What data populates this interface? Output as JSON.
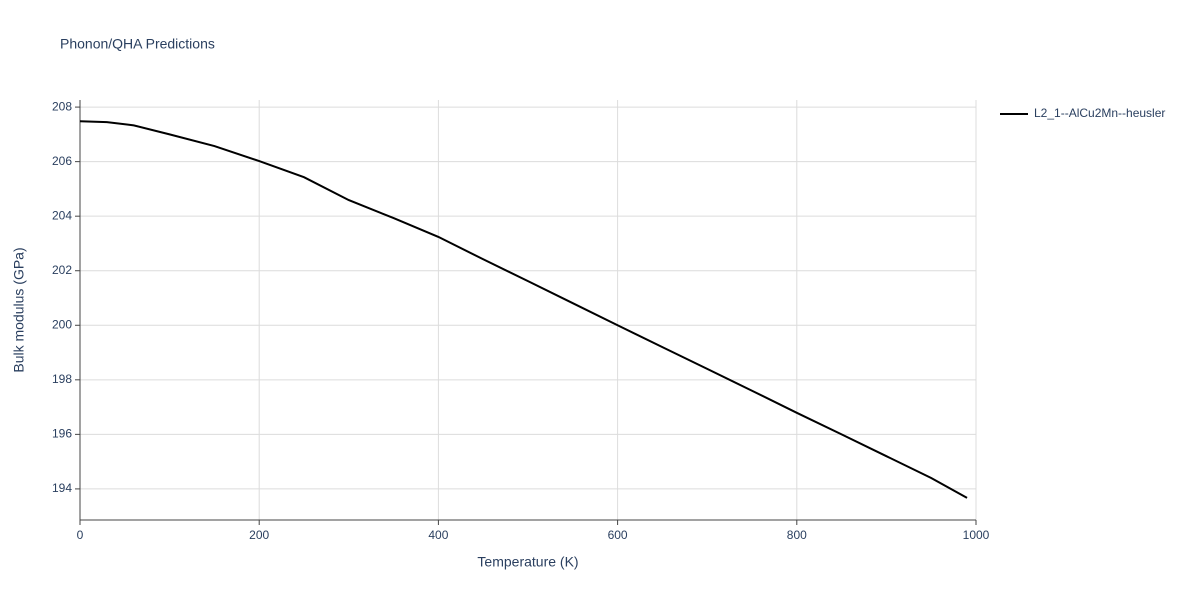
{
  "chart_data": {
    "type": "line",
    "title": "Phonon/QHA Predictions",
    "x_label": "Temperature (K)",
    "y_label": "Bulk modulus (GPa)",
    "x": [
      0,
      30,
      60,
      100,
      150,
      200,
      250,
      300,
      350,
      400,
      450,
      500,
      550,
      600,
      650,
      700,
      750,
      800,
      850,
      900,
      950,
      990
    ],
    "series": [
      {
        "name": "L2_1--AlCu2Mn--heusler",
        "color": "#000000",
        "values": [
          207.48,
          207.45,
          207.33,
          207.0,
          206.57,
          206.02,
          205.43,
          204.59,
          203.93,
          203.24,
          202.42,
          201.62,
          200.81,
          200.0,
          199.2,
          198.4,
          197.6,
          196.79,
          196.0,
          195.2,
          194.4,
          193.67
        ]
      }
    ],
    "xlim": [
      0,
      1000
    ],
    "xticks": [
      0,
      200,
      400,
      600,
      800,
      1000
    ],
    "ylim": [
      192.86,
      208.26
    ],
    "yticks": [
      194,
      196,
      198,
      200,
      202,
      204,
      206,
      208
    ],
    "grid": true,
    "legend": "right"
  }
}
